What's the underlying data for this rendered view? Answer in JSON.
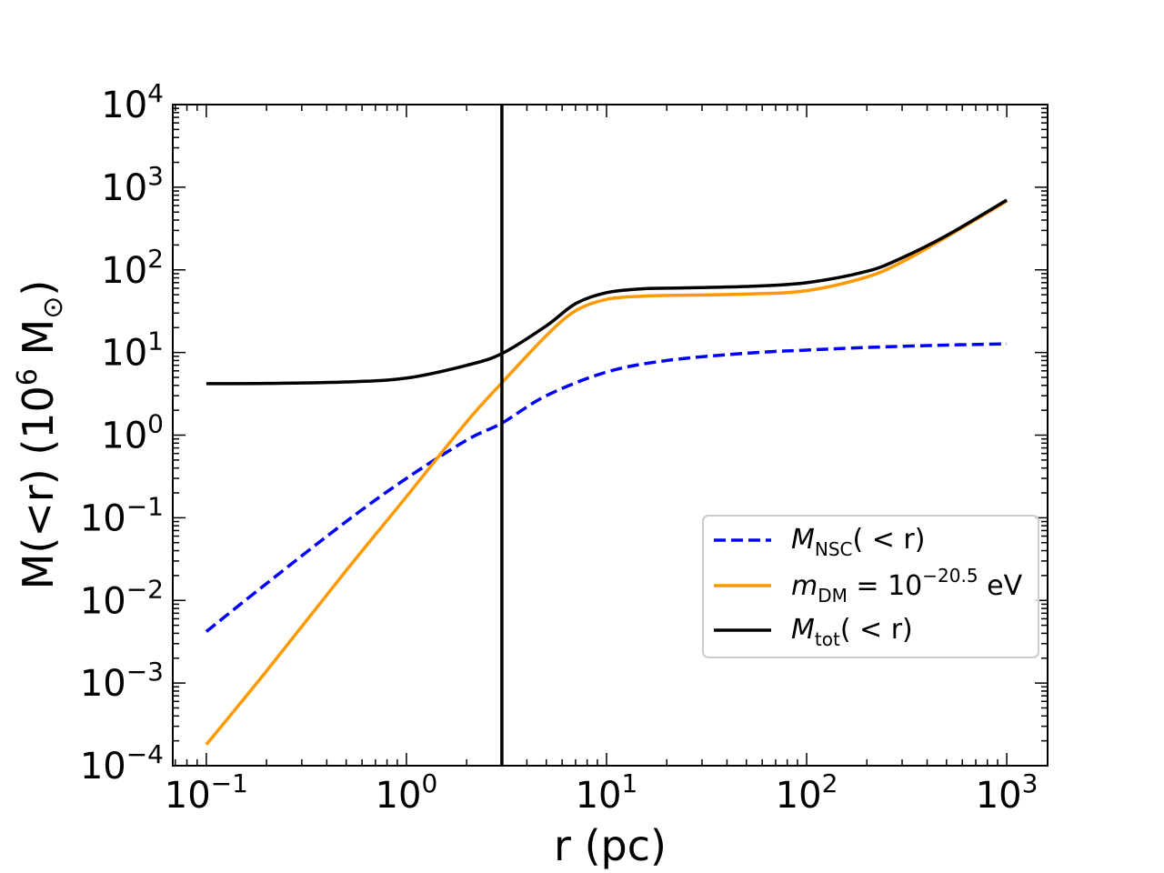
{
  "chart_data": {
    "type": "line",
    "title": "",
    "xscale": "log",
    "yscale": "log",
    "xlabel": "r (pc)",
    "ylabel": {
      "prefix": "M(<r) (10",
      "power": "6",
      "unit": " M",
      "unit_sub": "⊙",
      "suffix": ")"
    },
    "xlim": [
      0.068,
      1600
    ],
    "ylim": [
      0.0001,
      10000
    ],
    "x_ticks": [
      {
        "value": 0.1,
        "base": "10",
        "exp": "−1"
      },
      {
        "value": 1,
        "base": "10",
        "exp": "0"
      },
      {
        "value": 10,
        "base": "10",
        "exp": "1"
      },
      {
        "value": 100,
        "base": "10",
        "exp": "2"
      },
      {
        "value": 1000,
        "base": "10",
        "exp": "3"
      }
    ],
    "y_ticks": [
      {
        "value": 0.0001,
        "base": "10",
        "exp": "−4"
      },
      {
        "value": 0.001,
        "base": "10",
        "exp": "−3"
      },
      {
        "value": 0.01,
        "base": "10",
        "exp": "−2"
      },
      {
        "value": 0.1,
        "base": "10",
        "exp": "−1"
      },
      {
        "value": 1,
        "base": "10",
        "exp": "0"
      },
      {
        "value": 10,
        "base": "10",
        "exp": "1"
      },
      {
        "value": 100,
        "base": "10",
        "exp": "2"
      },
      {
        "value": 1000,
        "base": "10",
        "exp": "3"
      },
      {
        "value": 10000,
        "base": "10",
        "exp": "4"
      }
    ],
    "vertical_line": {
      "x": 3.0,
      "color": "#000000"
    },
    "legend_position": "center-right",
    "series": [
      {
        "name": "M_NSC(<r)",
        "legend": {
          "sym": "M",
          "sub": "NSC",
          "tail": "( < r)"
        },
        "color": "#0000ff",
        "style": "dashed",
        "x": [
          0.1,
          0.2,
          0.5,
          1,
          2,
          3,
          5,
          10,
          20,
          50,
          100,
          200,
          500,
          1000
        ],
        "y": [
          0.0042,
          0.016,
          0.09,
          0.3,
          0.87,
          1.4,
          3.0,
          5.8,
          8.0,
          9.8,
          10.7,
          11.5,
          12.3,
          12.7
        ]
      },
      {
        "name": "m_DM = 10^-20.5 eV",
        "legend": {
          "sym": "m",
          "sub": "DM",
          "mid": " = 10",
          "sup": "−20.5",
          "tail": " eV"
        },
        "color": "#ff9900",
        "style": "solid",
        "x": [
          0.1,
          0.2,
          0.5,
          1,
          2,
          3,
          5,
          7,
          10,
          15,
          20,
          50,
          100,
          200,
          300,
          500,
          1000
        ],
        "y": [
          0.00018,
          0.0014,
          0.023,
          0.18,
          1.45,
          4.3,
          16,
          32,
          44,
          48,
          49,
          51,
          56,
          82,
          125,
          250,
          680
        ]
      },
      {
        "name": "M_tot(<r)",
        "legend": {
          "sym": "M",
          "sub": "tot",
          "tail": "( < r)"
        },
        "color": "#000000",
        "style": "solid",
        "x": [
          0.1,
          0.2,
          0.5,
          1,
          2,
          3,
          5,
          7,
          10,
          15,
          20,
          50,
          100,
          200,
          300,
          500,
          1000
        ],
        "y": [
          4.2,
          4.22,
          4.4,
          4.9,
          7.0,
          9.7,
          21,
          39,
          53,
          59,
          60,
          63,
          70,
          96,
          140,
          260,
          700
        ]
      }
    ]
  }
}
